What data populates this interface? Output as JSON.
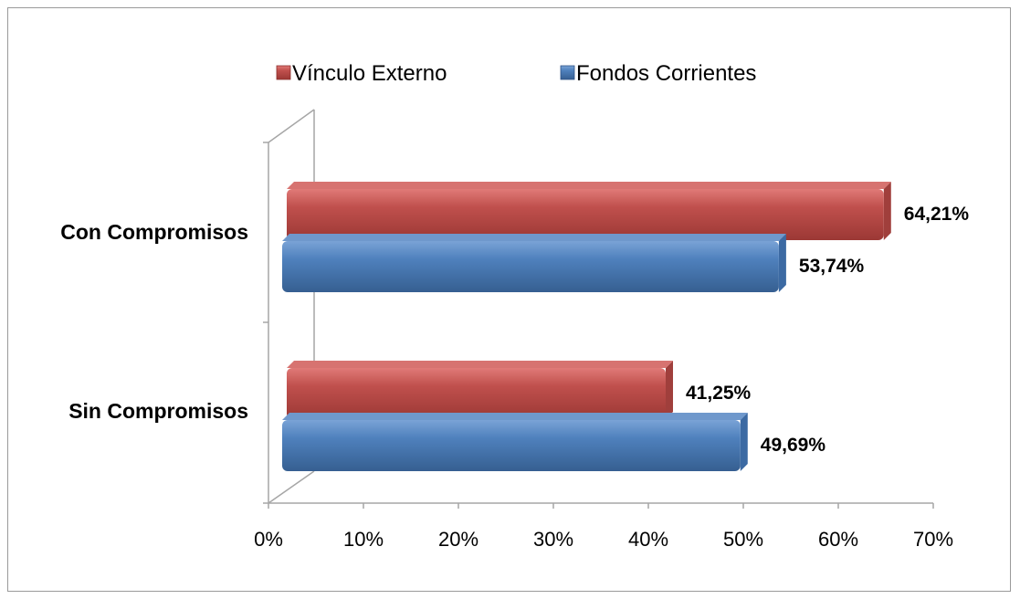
{
  "chart_data": {
    "type": "bar",
    "orientation": "horizontal",
    "categories": [
      "Con Compromisos",
      "Sin Compromisos"
    ],
    "series": [
      {
        "name": "Vínculo Externo",
        "values": [
          64.21,
          41.25
        ],
        "labels": [
          "64,21%",
          "41,25%"
        ],
        "color": "#c0504d"
      },
      {
        "name": "Fondos Corrientes",
        "values": [
          53.74,
          49.69
        ],
        "labels": [
          "53,74%",
          "49,69%"
        ],
        "color": "#4f81bd"
      }
    ],
    "xlim": [
      0,
      70
    ],
    "xticks": [
      "0%",
      "10%",
      "20%",
      "30%",
      "40%",
      "50%",
      "60%",
      "70%"
    ],
    "grid": false,
    "legend_position": "top",
    "style": "3d"
  }
}
